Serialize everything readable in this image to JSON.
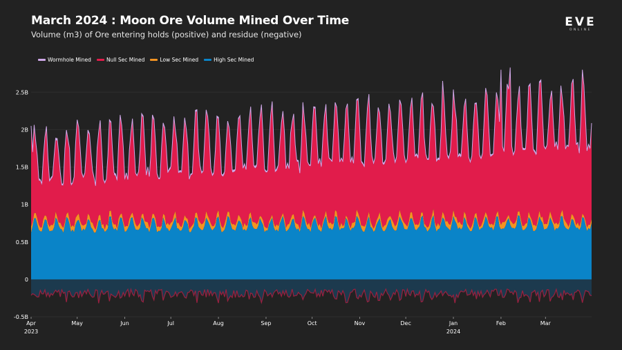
{
  "title": "March 2024 : Moon Ore Volume Mined Over Time",
  "subtitle": "Volume (m3) of Ore entering holds (positive) and residue (negative)",
  "logo": {
    "text": "EVE",
    "sub": "ONLINE"
  },
  "colors": {
    "background": "#222222",
    "high_sec": "#0a84c8",
    "low_sec": "#f39322",
    "null_sec": "#e11c4b",
    "wormhole": "#cfa8e8",
    "residue_fill": "#1c3a4e",
    "residue_line": "#9a2040"
  },
  "chart_data": {
    "type": "area",
    "stacked": true,
    "title": "March 2024 : Moon Ore Volume Mined Over Time",
    "subtitle": "Volume (m3) of Ore entering holds (positive) and residue (negative)",
    "xlabel": "",
    "ylabel": "",
    "x_range": [
      "2023-04-01",
      "2024-03-31"
    ],
    "ylim": [
      -0.5,
      2.9
    ],
    "y_ticks": [
      {
        "value": 2.5,
        "label": "2.5B"
      },
      {
        "value": 2.0,
        "label": "2B"
      },
      {
        "value": 1.5,
        "label": "1.5B"
      },
      {
        "value": 1.0,
        "label": "1B"
      },
      {
        "value": 0.5,
        "label": "0.5B"
      },
      {
        "value": 0.0,
        "label": "0"
      },
      {
        "value": -0.5,
        "label": "-0.5B"
      }
    ],
    "x_ticks": [
      {
        "day": 0,
        "label": "Apr",
        "sub": "2023"
      },
      {
        "day": 30,
        "label": "May",
        "sub": ""
      },
      {
        "day": 61,
        "label": "Jun",
        "sub": ""
      },
      {
        "day": 91,
        "label": "Jul",
        "sub": ""
      },
      {
        "day": 122,
        "label": "Aug",
        "sub": ""
      },
      {
        "day": 153,
        "label": "Sep",
        "sub": ""
      },
      {
        "day": 183,
        "label": "Oct",
        "sub": ""
      },
      {
        "day": 214,
        "label": "Nov",
        "sub": ""
      },
      {
        "day": 244,
        "label": "Dec",
        "sub": ""
      },
      {
        "day": 275,
        "label": "Jan",
        "sub": "2024"
      },
      {
        "day": 306,
        "label": "Feb",
        "sub": ""
      },
      {
        "day": 335,
        "label": "Mar",
        "sub": ""
      }
    ],
    "legend": [
      "Wormhole Mined",
      "Null Sec Mined",
      "Low Sec Mined",
      "High Sec Mined"
    ],
    "legend_position": "top-left",
    "unit": "billion m3",
    "days": 366,
    "series": [
      {
        "name": "High Sec Mined",
        "description": "stacked bottom layer, daily volume",
        "baseline_start": 0.68,
        "baseline_end": 0.7,
        "weekly_peak": 0.85,
        "weekly_trough": 0.62
      },
      {
        "name": "Low Sec Mined",
        "description": "thin stacked layer above high sec",
        "typical": 0.05,
        "peak": 0.09
      },
      {
        "name": "Null Sec Mined",
        "description": "largest stacked layer",
        "baseline_start": 0.55,
        "baseline_end": 1.0,
        "weekly_peak_top_start": 1.95,
        "weekly_peak_top_end": 2.55
      },
      {
        "name": "Wormhole Mined",
        "description": "thin top layer / outline of total",
        "typical": 0.02
      },
      {
        "name": "Residue",
        "description": "negative band below zero",
        "typical": -0.2,
        "range": [
          -0.32,
          -0.13
        ]
      }
    ],
    "notable_peaks": [
      {
        "date": "2023-04-01",
        "total": 2.05
      },
      {
        "date": "2023-12-25",
        "total": 2.65
      },
      {
        "date": "2024-02-01",
        "total": 2.8
      },
      {
        "date": "2024-02-07",
        "total": 2.83
      },
      {
        "date": "2024-03-25",
        "total": 2.8
      }
    ]
  }
}
